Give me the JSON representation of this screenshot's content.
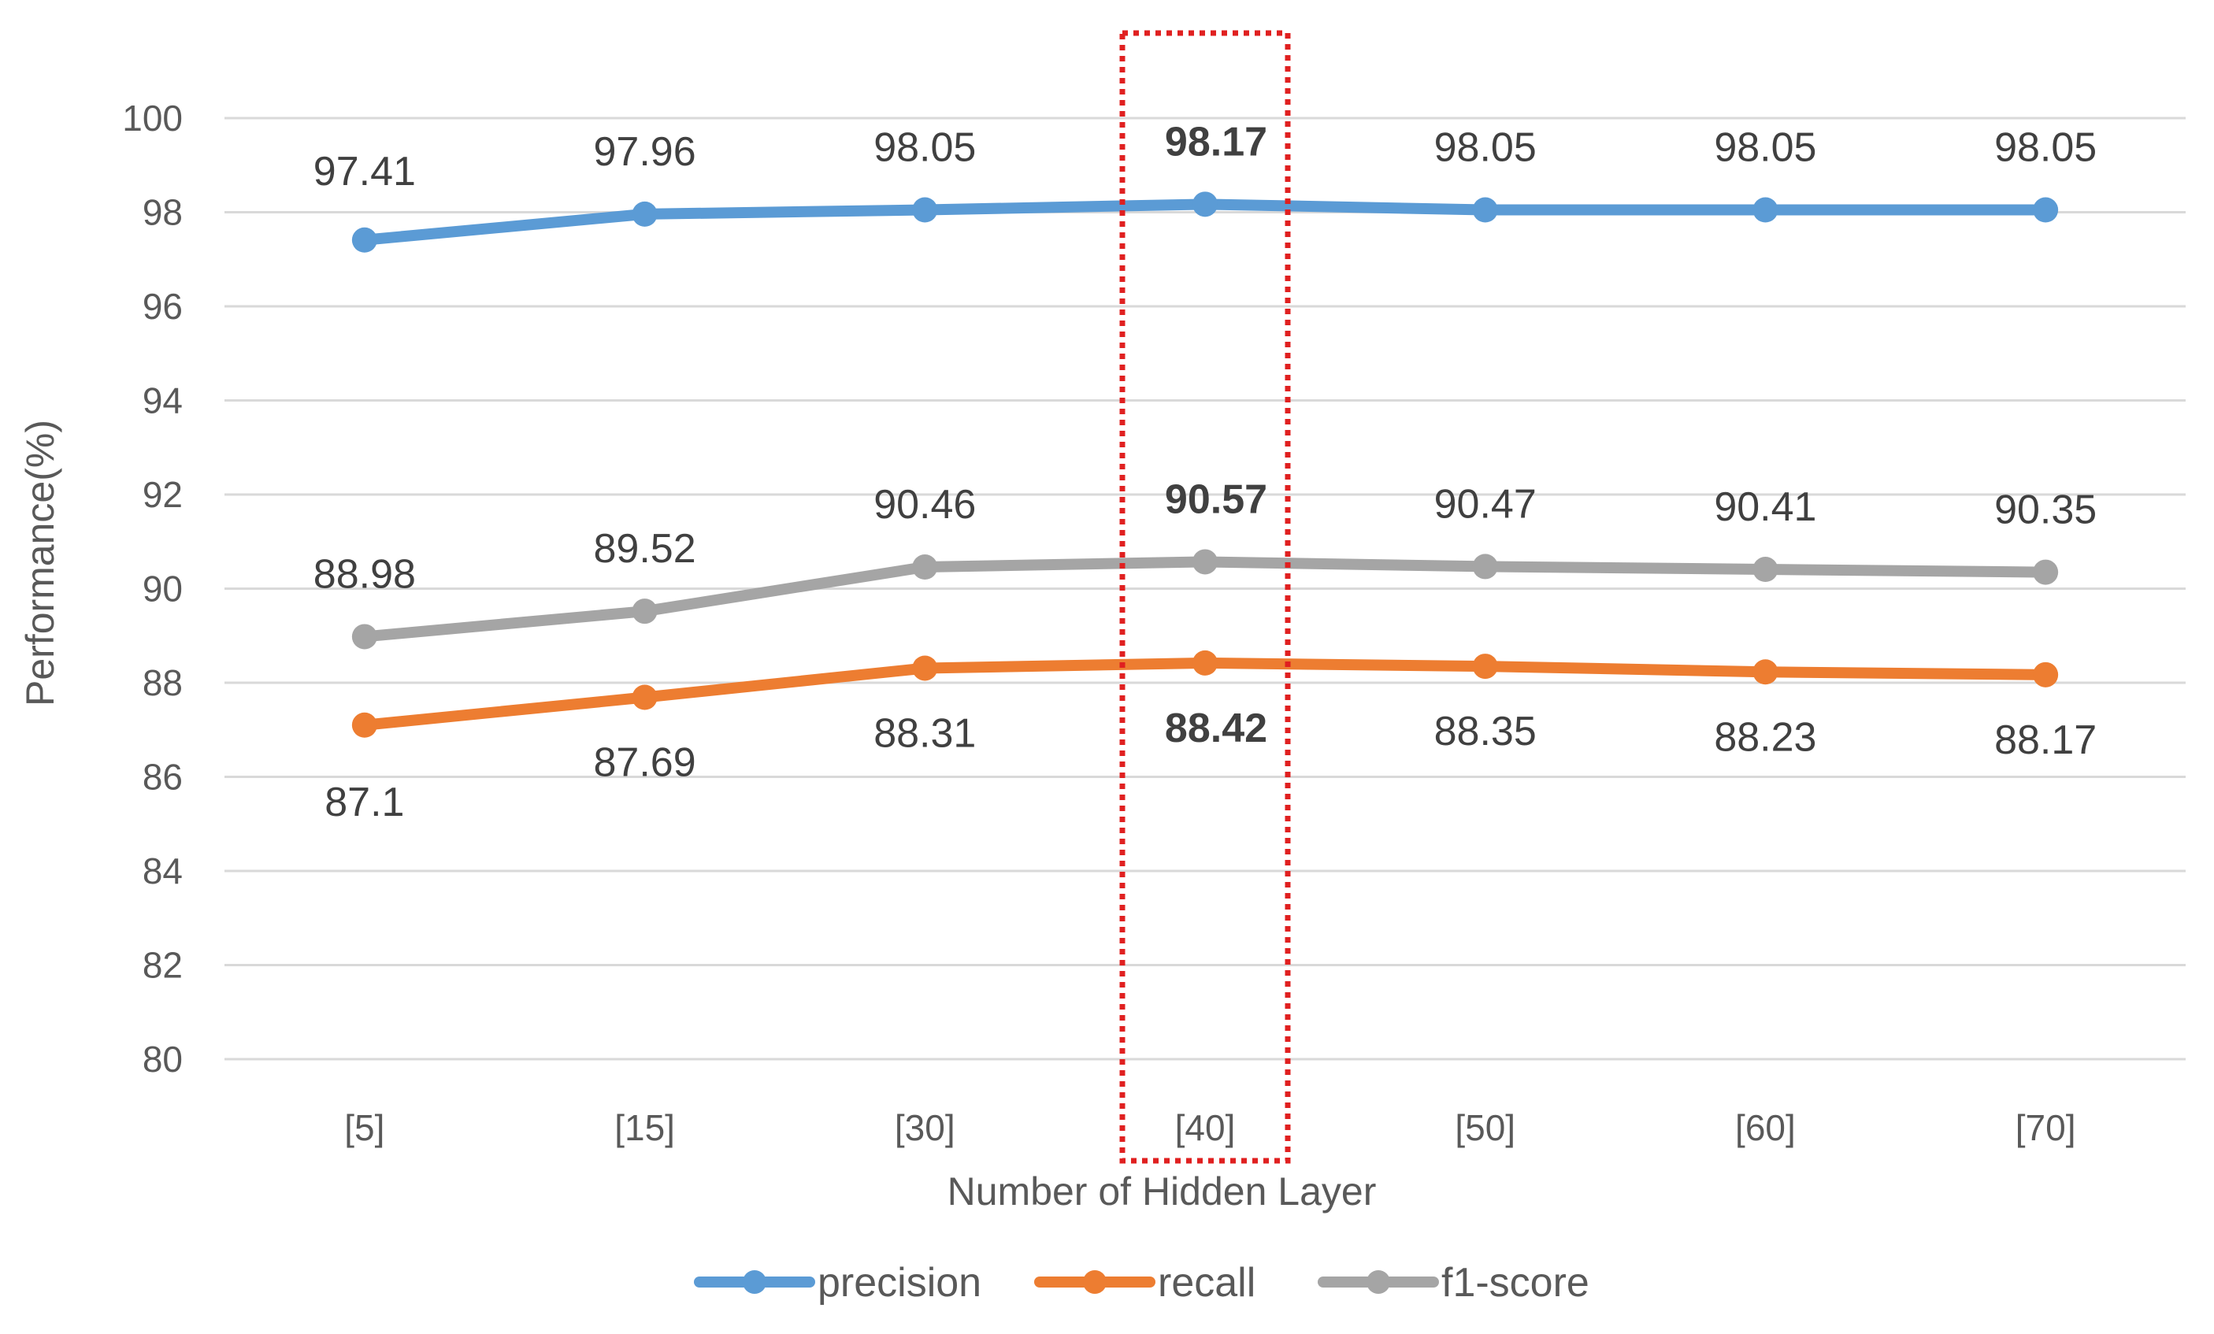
{
  "chart_data": {
    "type": "line",
    "categories": [
      "[5]",
      "[15]",
      "[30]",
      "[40]",
      "[50]",
      "[60]",
      "[70]"
    ],
    "series": [
      {
        "name": "precision",
        "color": "#5b9bd5",
        "values": [
          97.41,
          97.96,
          98.05,
          98.17,
          98.05,
          98.05,
          98.05
        ],
        "labels": [
          "97.41",
          "97.96",
          "98.05",
          "98.17",
          "98.05",
          "98.05",
          "98.05"
        ]
      },
      {
        "name": "recall",
        "color": "#ed7d31",
        "values": [
          87.1,
          87.69,
          88.31,
          88.42,
          88.35,
          88.23,
          88.17
        ],
        "labels": [
          "87.1",
          "87.69",
          "88.31",
          "88.42",
          "88.35",
          "88.23",
          "88.17"
        ]
      },
      {
        "name": "f1-score",
        "color": "#a5a5a5",
        "values": [
          88.98,
          89.52,
          90.46,
          90.57,
          90.47,
          90.41,
          90.35
        ],
        "labels": [
          "88.98",
          "89.52",
          "90.46",
          "90.57",
          "90.47",
          "90.41",
          "90.35"
        ]
      }
    ],
    "xlabel": "Number of Hidden Layer",
    "ylabel": "Performance(%)",
    "ylim": [
      80,
      100
    ],
    "yticks": [
      80,
      82,
      84,
      86,
      88,
      90,
      92,
      94,
      96,
      98,
      100
    ],
    "grid": true,
    "legend": "bottom",
    "highlight_category": "[40]",
    "highlight_color": "#e02020"
  }
}
